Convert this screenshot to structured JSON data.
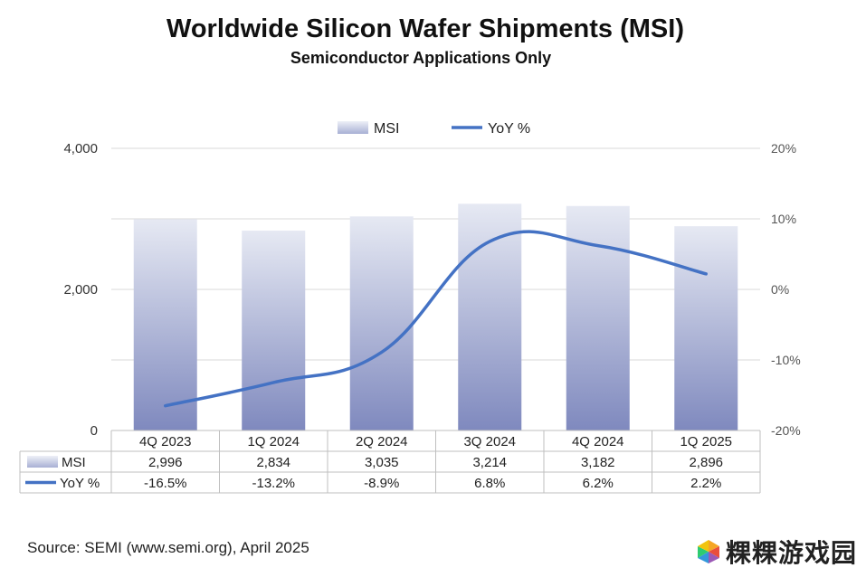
{
  "colors": {
    "bar_top": "#e6e9f3",
    "bar_bottom": "#7f89be",
    "line": "#4472c4",
    "grid": "#d9d9d9"
  },
  "chart_data": {
    "type": "bar",
    "title": "Worldwide Silicon Wafer Shipments (MSI)",
    "subtitle": "Semiconductor Applications Only",
    "categories": [
      "4Q 2023",
      "1Q 2024",
      "2Q 2024",
      "3Q 2024",
      "4Q 2024",
      "1Q 2025"
    ],
    "series": [
      {
        "name": "MSI",
        "type": "bar",
        "axis": "left",
        "values": [
          2996,
          2834,
          3035,
          3214,
          3182,
          2896
        ],
        "labels": [
          "2,996",
          "2,834",
          "3,035",
          "3,214",
          "3,182",
          "2,896"
        ]
      },
      {
        "name": "YoY %",
        "type": "line",
        "axis": "right",
        "values": [
          -16.5,
          -13.2,
          -8.9,
          6.8,
          6.2,
          2.2
        ],
        "labels": [
          "-16.5%",
          "-13.2%",
          "-8.9%",
          "6.8%",
          "6.2%",
          "2.2%"
        ]
      }
    ],
    "y_left": {
      "range": [
        0,
        4000
      ],
      "ticks": [
        0,
        2000,
        4000
      ],
      "tick_labels": [
        "0",
        "2,000",
        "4,000"
      ]
    },
    "y_right": {
      "range": [
        -20,
        20
      ],
      "ticks": [
        20,
        10,
        0,
        -10,
        -20
      ],
      "tick_labels": [
        "20%",
        "10%",
        "0%",
        "-10%",
        "-20%"
      ]
    },
    "legend": {
      "placement": "top-center",
      "items": [
        "MSI",
        "YoY %"
      ]
    },
    "grid": true
  },
  "source": "Source: SEMI (www.semi.org), April 2025",
  "watermark": "粿粿游戏园"
}
